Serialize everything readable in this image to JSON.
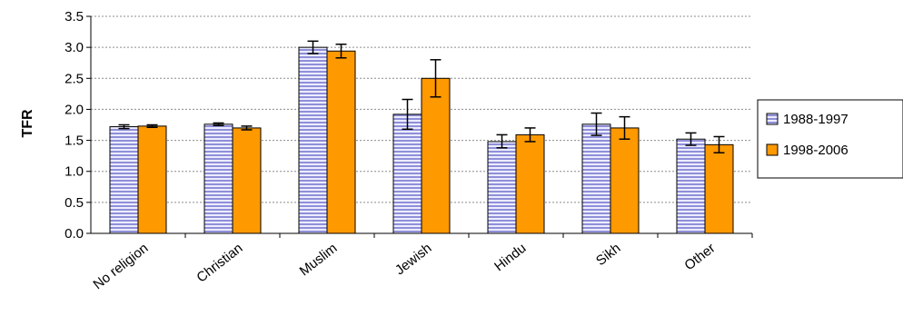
{
  "chart_data": {
    "type": "bar",
    "title": "",
    "xlabel": "",
    "ylabel": "TFR",
    "ylim": [
      0,
      3.5
    ],
    "yticks": [
      "0.0",
      "0.5",
      "1.0",
      "1.5",
      "2.0",
      "2.5",
      "3.0",
      "3.5"
    ],
    "grid": "horizontal dashed",
    "legend_position": "right",
    "categories": [
      "No religion",
      "Christian",
      "Muslim",
      "Jewish",
      "Hindu",
      "Sikh",
      "Other"
    ],
    "series": [
      {
        "name": "1988-1997",
        "color": "#c8c8f0",
        "pattern": "horizontal-stripes",
        "values": [
          1.72,
          1.76,
          3.0,
          1.92,
          1.48,
          1.76,
          1.52
        ],
        "error_low": [
          1.69,
          1.74,
          2.9,
          1.68,
          1.38,
          1.58,
          1.42
        ],
        "error_high": [
          1.75,
          1.78,
          3.1,
          2.16,
          1.59,
          1.94,
          1.62
        ]
      },
      {
        "name": "1998-2006",
        "color": "#ff9900",
        "pattern": "solid",
        "values": [
          1.73,
          1.7,
          2.94,
          2.5,
          1.59,
          1.7,
          1.43
        ],
        "error_low": [
          1.71,
          1.67,
          2.83,
          2.2,
          1.48,
          1.52,
          1.3
        ],
        "error_high": [
          1.75,
          1.73,
          3.05,
          2.8,
          1.7,
          1.88,
          1.56
        ]
      }
    ]
  }
}
